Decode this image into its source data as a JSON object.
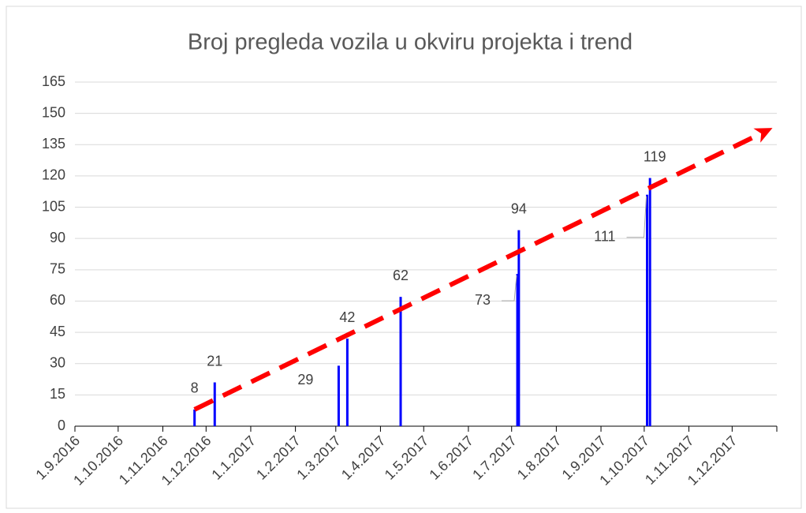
{
  "chart_data": {
    "type": "bar",
    "title": "Broj pregleda vozila u okviru projekta i trend",
    "x": [
      "2016-11-23",
      "2016-12-07",
      "2017-03-03",
      "2017-03-09",
      "2017-04-15",
      "2017-07-05",
      "2017-07-06",
      "2017-10-03",
      "2017-10-05"
    ],
    "values": [
      8,
      21,
      29,
      42,
      62,
      73,
      94,
      111,
      119
    ],
    "color": "#0000ff",
    "trend": {
      "color": "#ff0000",
      "x": [
        "2016-11-23",
        "2017-12-29"
      ],
      "values": [
        8,
        143
      ]
    },
    "xlim": [
      "2016-09-01",
      "2018-01-01"
    ],
    "xticks": [
      {
        "value": "2016-09-01",
        "label": "1.9.2016"
      },
      {
        "value": "2016-10-01",
        "label": "1.10.2016"
      },
      {
        "value": "2016-11-01",
        "label": "1.11.2016"
      },
      {
        "value": "2016-12-01",
        "label": "1.12.2016"
      },
      {
        "value": "2017-01-01",
        "label": "1.1.2017"
      },
      {
        "value": "2017-02-01",
        "label": "1.2.2017"
      },
      {
        "value": "2017-03-01",
        "label": "1.3.2017"
      },
      {
        "value": "2017-04-01",
        "label": "1.4.2017"
      },
      {
        "value": "2017-05-01",
        "label": "1.5.2017"
      },
      {
        "value": "2017-06-01",
        "label": "1.6.2017"
      },
      {
        "value": "2017-07-01",
        "label": "1.7.2017"
      },
      {
        "value": "2017-08-01",
        "label": "1.8.2017"
      },
      {
        "value": "2017-09-01",
        "label": "1.9.2017"
      },
      {
        "value": "2017-10-01",
        "label": "1.10.2017"
      },
      {
        "value": "2017-11-01",
        "label": "1.11.2017"
      },
      {
        "value": "2017-12-01",
        "label": "1.12.2017"
      }
    ],
    "ylim": [
      0,
      165
    ],
    "yticks": [
      0,
      15,
      30,
      45,
      60,
      75,
      90,
      105,
      120,
      135,
      150,
      165
    ],
    "grid": true
  }
}
